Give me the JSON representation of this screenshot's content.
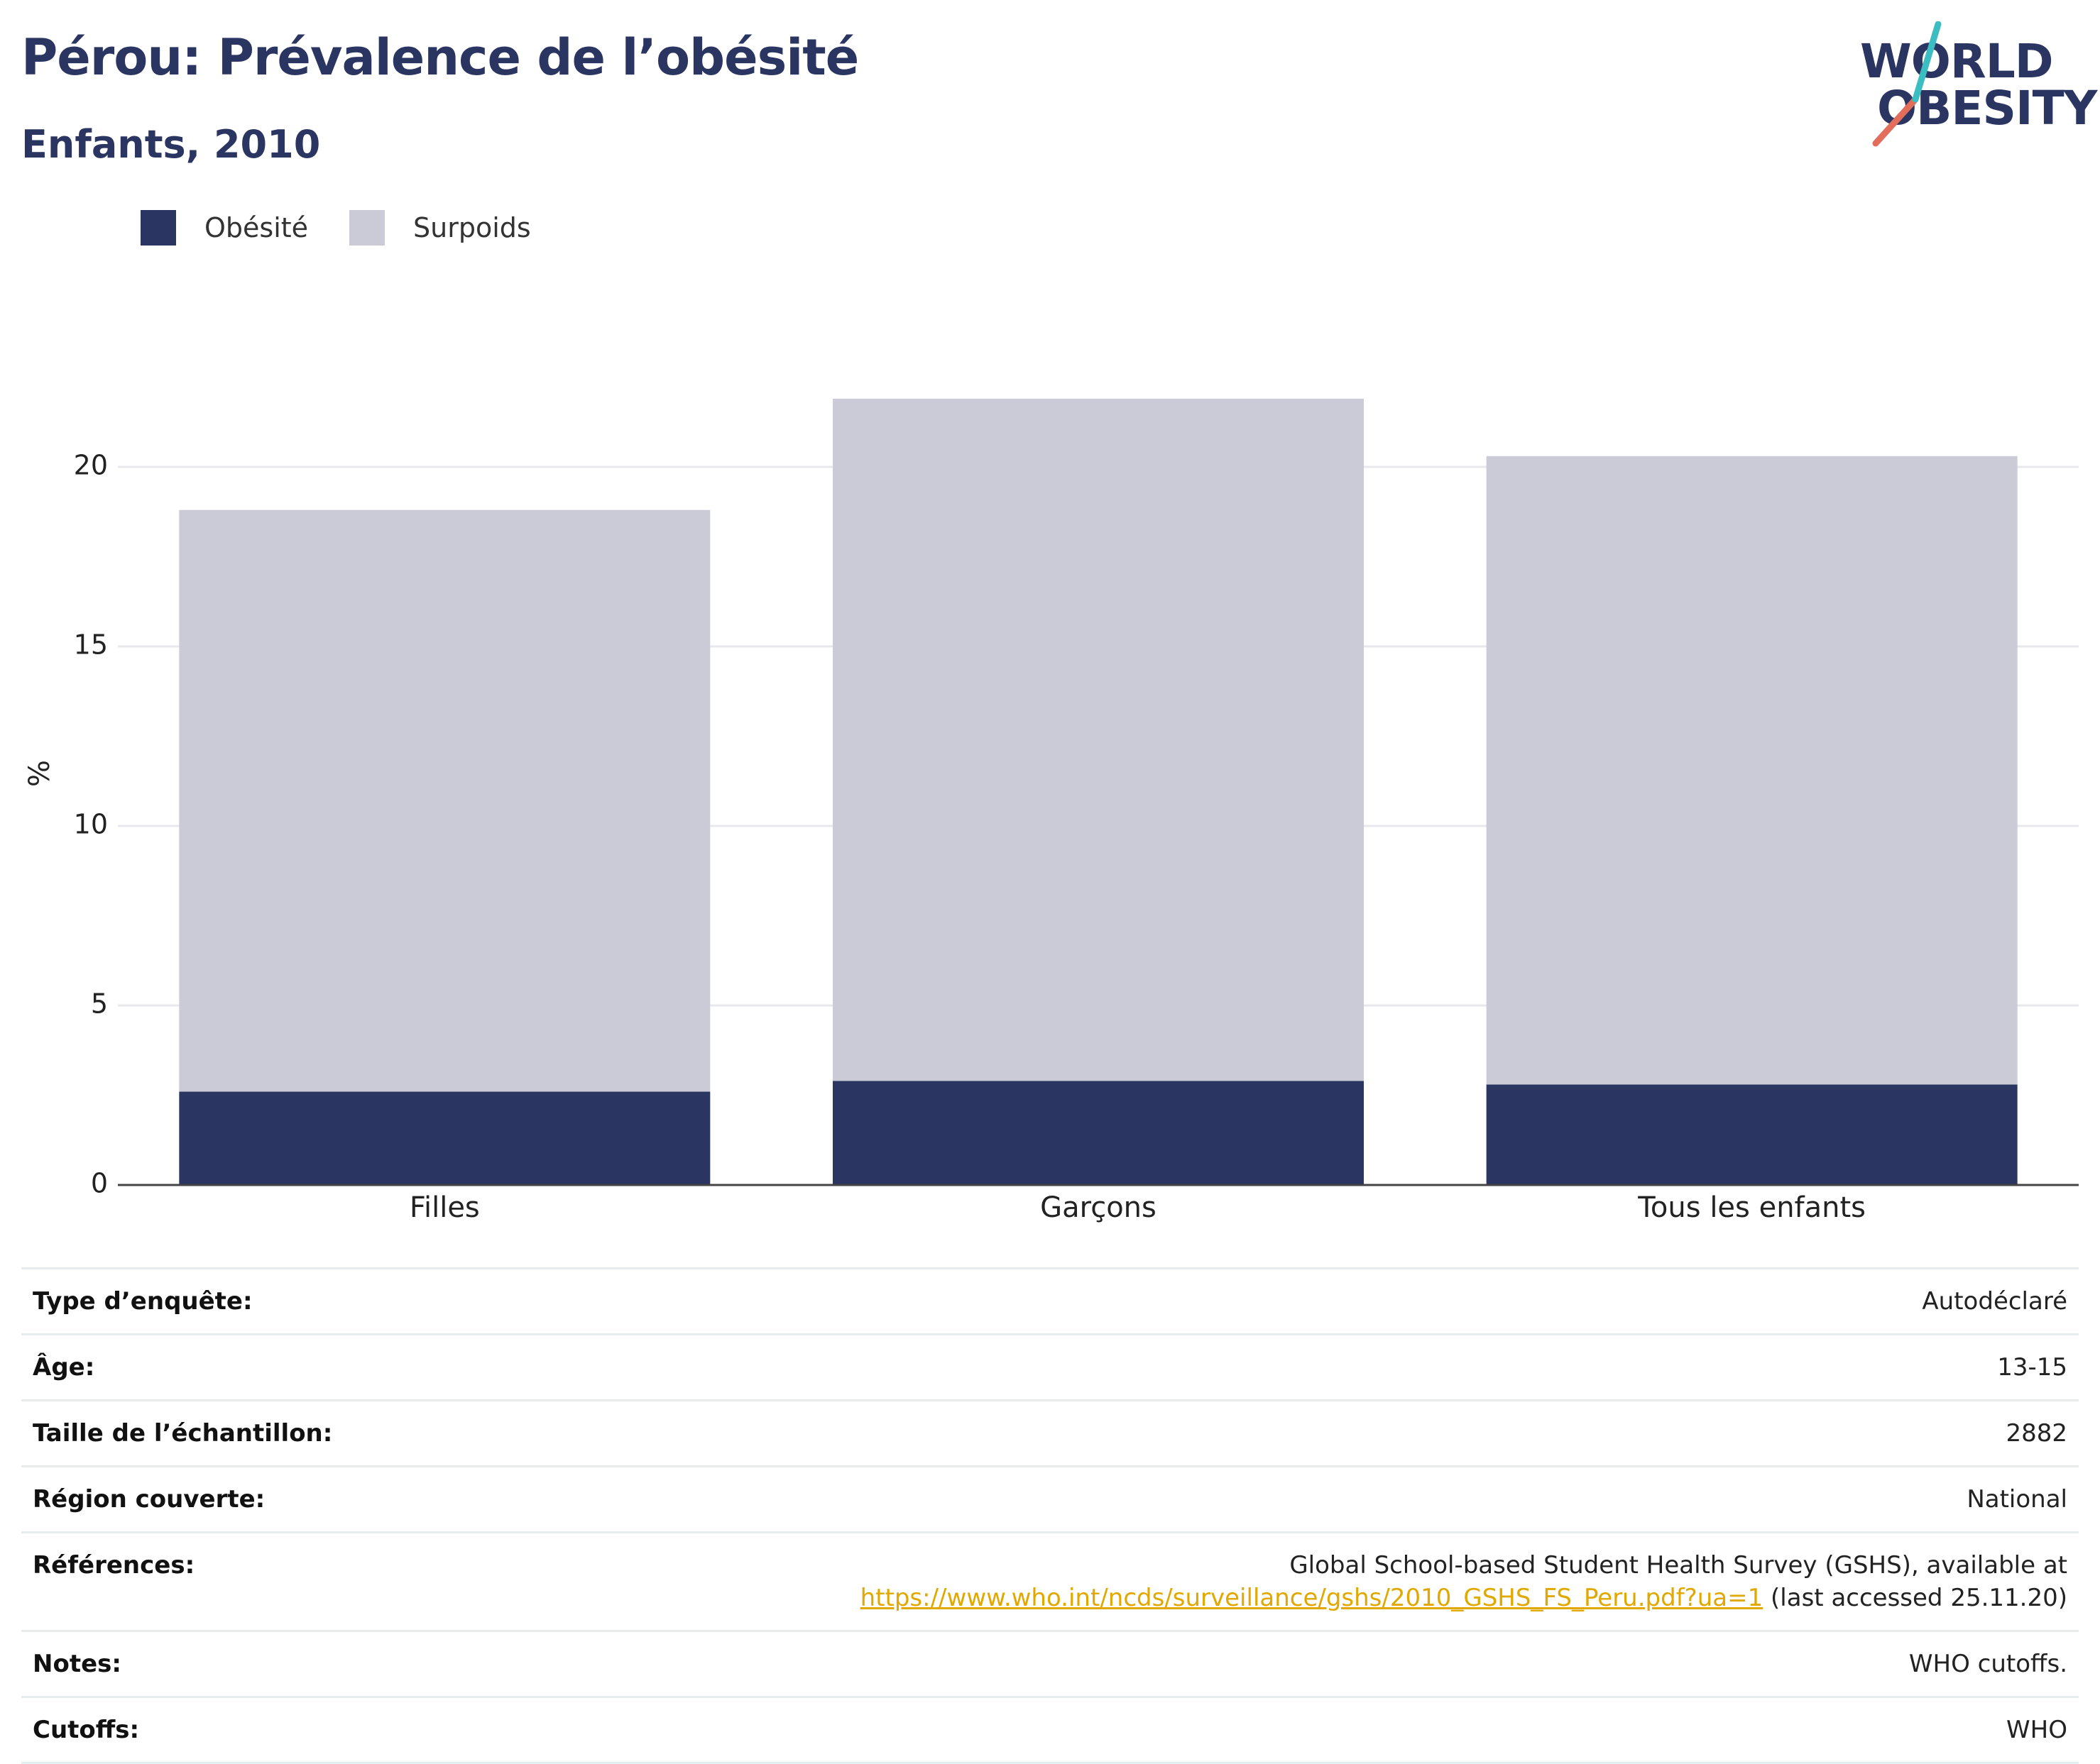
{
  "title": "Pérou: Prévalence de l’obésité",
  "subtitle": "Enfants, 2010",
  "logo": {
    "line1": "WORLD",
    "line2": "OBESITY"
  },
  "colors": {
    "obesite": "#2b3562",
    "surpoids": "#cacbd6",
    "accent_teal": "#3bbdc1",
    "accent_red": "#e36d5b",
    "link": "#e0a800"
  },
  "chart_data": {
    "type": "bar",
    "stacked": true,
    "categories": [
      "Filles",
      "Garçons",
      "Tous les enfants"
    ],
    "series": [
      {
        "name": "Obésité",
        "values": [
          2.6,
          2.9,
          2.8
        ],
        "color": "#2b3562"
      },
      {
        "name": "Surpoids",
        "values": [
          16.2,
          19.0,
          17.5
        ],
        "color": "#cacbd6"
      }
    ],
    "totals": [
      18.8,
      21.9,
      20.3
    ],
    "ylabel": "%",
    "xlabel": "",
    "ylim": [
      0,
      23.5
    ],
    "yticks": [
      "0",
      "5",
      "10",
      "15",
      "20"
    ],
    "grid": true,
    "legend": "top-left"
  },
  "table": [
    {
      "key": "Type d’enquête:",
      "value": "Autodéclaré"
    },
    {
      "key": "Âge:",
      "value": "13-15"
    },
    {
      "key": "Taille de l’échantillon:",
      "value": "2882"
    },
    {
      "key": "Région couverte:",
      "value": "National"
    },
    {
      "key": "Références:",
      "value_line1": "Global School-based Student Health Survey (GSHS), available at",
      "value_link": "https://www.who.int/ncds/surveillance/gshs/2010_GSHS_FS_Peru.pdf?ua=1",
      "value_tail": " (last accessed 25.11.20)"
    },
    {
      "key": "Notes:",
      "value": "WHO cutoffs."
    },
    {
      "key": "Cutoffs:",
      "value": "WHO"
    }
  ]
}
